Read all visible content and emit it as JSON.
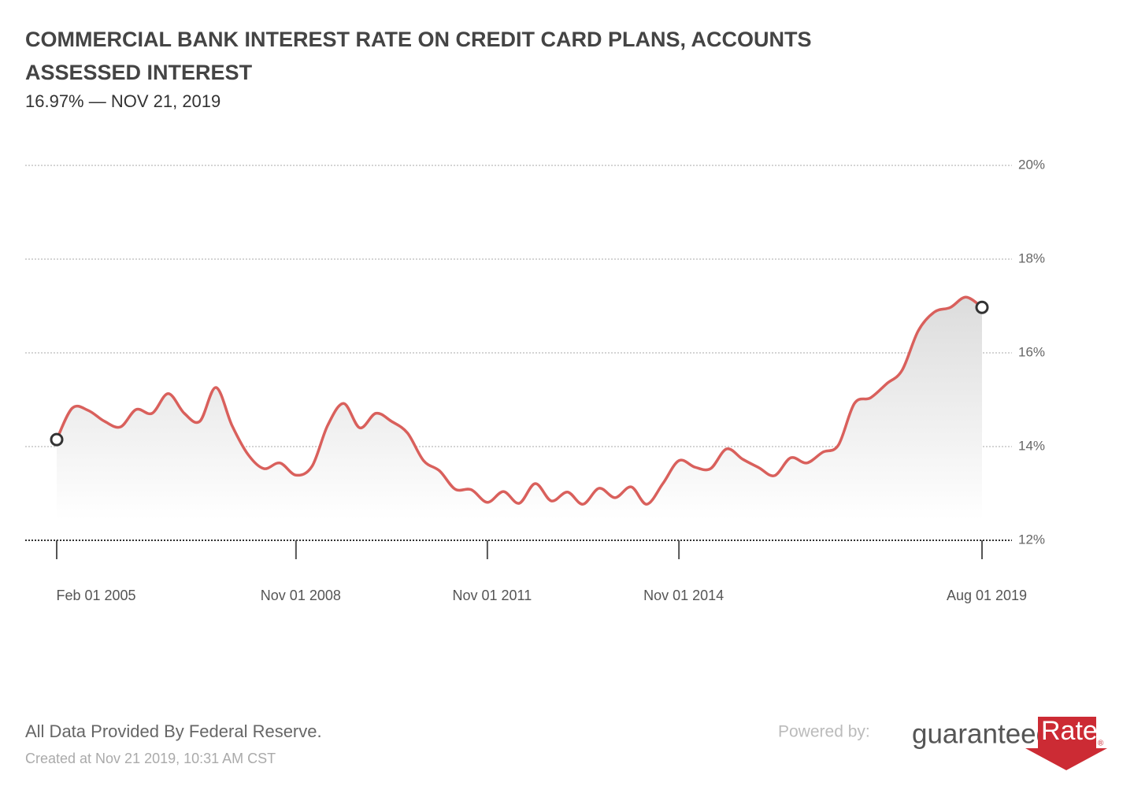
{
  "chart_data": {
    "type": "line",
    "title_lines": [
      "COMMERCIAL BANK INTEREST RATE ON CREDIT CARD PLANS, ACCOUNTS",
      "ASSESSED INTEREST"
    ],
    "subtitle": "16.97% — NOV 21, 2019",
    "x": [
      "2005-02-01",
      "2005-05-01",
      "2005-08-01",
      "2005-11-01",
      "2006-02-01",
      "2006-05-01",
      "2006-08-01",
      "2006-11-01",
      "2007-02-01",
      "2007-05-01",
      "2007-08-01",
      "2007-11-01",
      "2008-02-01",
      "2008-05-01",
      "2008-08-01",
      "2008-11-01",
      "2009-02-01",
      "2009-05-01",
      "2009-08-01",
      "2009-11-01",
      "2010-02-01",
      "2010-05-01",
      "2010-08-01",
      "2010-11-01",
      "2011-02-01",
      "2011-05-01",
      "2011-08-01",
      "2011-11-01",
      "2012-02-01",
      "2012-05-01",
      "2012-08-01",
      "2012-11-01",
      "2013-02-01",
      "2013-05-01",
      "2013-08-01",
      "2013-11-01",
      "2014-02-01",
      "2014-05-01",
      "2014-08-01",
      "2014-11-01",
      "2015-02-01",
      "2015-05-01",
      "2015-08-01",
      "2015-11-01",
      "2016-02-01",
      "2016-05-01",
      "2016-08-01",
      "2016-11-01",
      "2017-02-01",
      "2017-05-01",
      "2017-08-01",
      "2017-11-01",
      "2018-02-01",
      "2018-05-01",
      "2018-08-01",
      "2018-11-01",
      "2019-02-01",
      "2019-05-01",
      "2019-08-01"
    ],
    "series": [
      {
        "color": "#d9605c",
        "values": [
          14.15,
          14.82,
          14.77,
          14.54,
          14.42,
          14.79,
          14.71,
          15.13,
          14.71,
          14.54,
          15.26,
          14.45,
          13.83,
          13.53,
          13.65,
          13.39,
          13.58,
          14.45,
          14.92,
          14.4,
          14.71,
          14.54,
          14.29,
          13.7,
          13.48,
          13.09,
          13.08,
          12.81,
          13.04,
          12.79,
          13.21,
          12.84,
          13.03,
          12.77,
          13.11,
          12.91,
          13.14,
          12.77,
          13.21,
          13.7,
          13.56,
          13.53,
          13.95,
          13.73,
          13.55,
          13.38,
          13.76,
          13.65,
          13.88,
          14.03,
          14.92,
          15.04,
          15.34,
          15.63,
          16.47,
          16.87,
          16.97,
          17.19,
          16.97
        ]
      }
    ],
    "xlim": [
      "2005-02-01",
      "2019-08-01"
    ],
    "xticks": [
      {
        "value": "2005-02-01",
        "label": "Feb 01 2005"
      },
      {
        "value": "2008-11-01",
        "label": "Nov 01 2008"
      },
      {
        "value": "2011-11-01",
        "label": "Nov 01 2011"
      },
      {
        "value": "2014-11-01",
        "label": "Nov 01 2014"
      },
      {
        "value": "2019-08-01",
        "label": "Aug 01 2019"
      }
    ],
    "ylim": [
      12,
      20
    ],
    "yticks": [
      {
        "value": 12,
        "label": "12%"
      },
      {
        "value": 14,
        "label": "14%"
      },
      {
        "value": 16,
        "label": "16%"
      },
      {
        "value": 18,
        "label": "18%"
      },
      {
        "value": 20,
        "label": "20%"
      }
    ],
    "grid": true
  },
  "footer": {
    "source": "All Data Provided By Federal Reserve.",
    "created": "Created at Nov 21 2019, 10:31 AM CST",
    "powered": "Powered by:",
    "logo_left": "guaranteed",
    "logo_right": "Rate",
    "logo_mark": "®"
  }
}
